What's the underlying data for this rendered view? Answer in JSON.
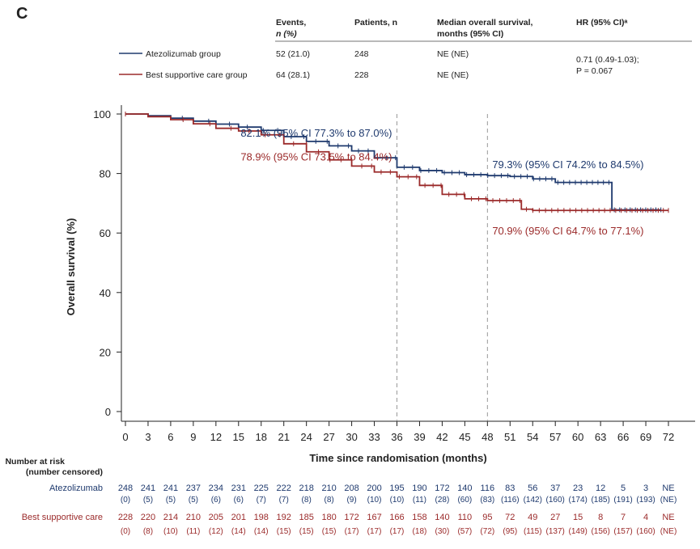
{
  "panel_label": "C",
  "summary_table": {
    "headers": {
      "events": "Events,",
      "events_sub": "n (%)",
      "patients": "Patients, n",
      "median": "Median overall survival,",
      "median_sub": "months (95% CI)",
      "hr": "HR (95% CI)ᵃ"
    },
    "rows": [
      {
        "group": "Atezolizumab group",
        "events": "52 (21.0)",
        "patients": "248",
        "median": "NE (NE)",
        "color": "#1f3a6e"
      },
      {
        "group": "Best supportive care group",
        "events": "64 (28.1)",
        "patients": "228",
        "median": "NE (NE)",
        "color": "#9b2a2a"
      }
    ],
    "hr_value": "0.71 (0.49-1.03);",
    "hr_p": "P = 0.067"
  },
  "chart_data": {
    "type": "line",
    "title": "",
    "xlabel": "Time since randomisation (months)",
    "ylabel": "Overall survival (%)",
    "xlim": [
      0,
      72
    ],
    "ylim": [
      0,
      100
    ],
    "xticks": [
      0,
      3,
      6,
      9,
      12,
      15,
      18,
      21,
      24,
      27,
      30,
      33,
      36,
      39,
      42,
      45,
      48,
      51,
      54,
      57,
      60,
      63,
      66,
      69,
      72
    ],
    "yticks": [
      0,
      20,
      40,
      60,
      80,
      100
    ],
    "reference_lines_x": [
      36,
      48
    ],
    "series": [
      {
        "name": "Atezolizumab group",
        "color": "#1f3a6e",
        "x": [
          0,
          3,
          6,
          9,
          12,
          15,
          18,
          21,
          24,
          27,
          30,
          33,
          36,
          39,
          42,
          45,
          48,
          51,
          54,
          57,
          60,
          63,
          64.5,
          64.5,
          66,
          69,
          71
        ],
        "y": [
          100,
          99.4,
          98.6,
          97.6,
          96.6,
          95.6,
          94.5,
          92.4,
          90.8,
          89.3,
          87.6,
          85.3,
          82.1,
          81.0,
          80.3,
          79.6,
          79.3,
          79.0,
          78.2,
          77.0,
          77.0,
          77.0,
          77.0,
          67.8,
          67.8,
          67.8,
          67.8
        ]
      },
      {
        "name": "Best supportive care group",
        "color": "#9b2a2a",
        "x": [
          0,
          3,
          6,
          9,
          12,
          15,
          18,
          21,
          24,
          27,
          30,
          33,
          36,
          39,
          42,
          45,
          48,
          51,
          52.5,
          54,
          57,
          60,
          63,
          66,
          69,
          72
        ],
        "y": [
          100,
          99.1,
          98.1,
          96.7,
          95.2,
          94.3,
          93.0,
          90.0,
          87.3,
          84.6,
          82.5,
          80.5,
          78.9,
          76.0,
          73.0,
          71.5,
          70.9,
          70.9,
          68.0,
          67.6,
          67.6,
          67.6,
          67.6,
          67.6,
          67.6,
          67.6
        ]
      }
    ],
    "annotations": [
      {
        "text": "82.1% (95% CI 77.3% to 87.0%)",
        "series": 0,
        "at_month": 36,
        "side": "left"
      },
      {
        "text": "79.3% (95% CI 74.2% to 84.5%)",
        "series": 0,
        "at_month": 48,
        "side": "right"
      },
      {
        "text": "78.9% (95% CI 73.5% to 84.4%)",
        "series": 1,
        "at_month": 36,
        "side": "left"
      },
      {
        "text": "70.9% (95% CI 64.7% to 77.1%)",
        "series": 1,
        "at_month": 48,
        "side": "right"
      }
    ]
  },
  "risk_table": {
    "title_line1": "Number at risk",
    "title_line2": "(number censored)",
    "rows": [
      {
        "label": "Atezolizumab",
        "color": "#1f3a6e",
        "at_risk": [
          "248",
          "241",
          "241",
          "237",
          "234",
          "231",
          "225",
          "222",
          "218",
          "210",
          "208",
          "200",
          "195",
          "190",
          "172",
          "140",
          "116",
          "83",
          "56",
          "37",
          "23",
          "12",
          "5",
          "3",
          "NE"
        ],
        "censored": [
          "(0)",
          "(5)",
          "(5)",
          "(5)",
          "(6)",
          "(6)",
          "(7)",
          "(7)",
          "(8)",
          "(8)",
          "(9)",
          "(10)",
          "(10)",
          "(11)",
          "(28)",
          "(60)",
          "(83)",
          "(116)",
          "(142)",
          "(160)",
          "(174)",
          "(185)",
          "(191)",
          "(193)",
          "(NE)"
        ]
      },
      {
        "label": "Best supportive care",
        "color": "#9b2a2a",
        "at_risk": [
          "228",
          "220",
          "214",
          "210",
          "205",
          "201",
          "198",
          "192",
          "185",
          "180",
          "172",
          "167",
          "166",
          "158",
          "140",
          "110",
          "95",
          "72",
          "49",
          "27",
          "15",
          "8",
          "7",
          "4",
          "NE"
        ],
        "censored": [
          "(0)",
          "(8)",
          "(10)",
          "(11)",
          "(12)",
          "(14)",
          "(14)",
          "(15)",
          "(15)",
          "(15)",
          "(17)",
          "(17)",
          "(17)",
          "(18)",
          "(30)",
          "(57)",
          "(72)",
          "(95)",
          "(115)",
          "(137)",
          "(149)",
          "(156)",
          "(157)",
          "(160)",
          "(NE)"
        ]
      }
    ]
  }
}
